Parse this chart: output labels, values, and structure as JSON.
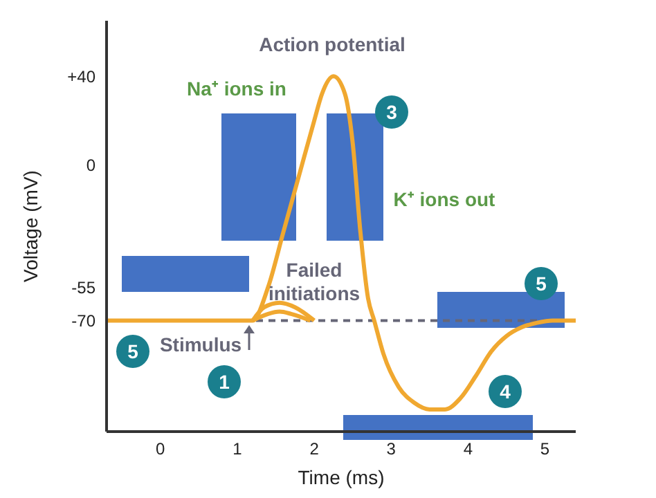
{
  "chart_data": {
    "type": "line",
    "xlabel": "Time (ms)",
    "ylabel": "Voltage (mV)",
    "xlim": [
      -0.7,
      5.4
    ],
    "ylim": [
      -120,
      65
    ],
    "xticks": [
      0,
      1,
      2,
      3,
      4,
      5
    ],
    "yticks": [
      {
        "value": 40,
        "label": "+40"
      },
      0,
      -55,
      -70
    ],
    "marker": "none",
    "line_style": "solid",
    "series": [
      {
        "color": "#f0a830",
        "x": [
          -0.7,
          1.2,
          1.4,
          1.6,
          1.8,
          2.0,
          2.1,
          2.25,
          2.4,
          2.5,
          2.6,
          2.7,
          2.78,
          2.9,
          3.1,
          3.3,
          3.5,
          3.7,
          3.9,
          4.1,
          4.3,
          4.5,
          4.7,
          4.9,
          5.1,
          5.4
        ],
        "values": [
          -70,
          -70,
          -55,
          -30,
          -5,
          20,
          32,
          40,
          32,
          10,
          -30,
          -60,
          -70,
          -85,
          -100,
          -107,
          -110,
          -110,
          -105,
          -95,
          -84,
          -77,
          -73,
          -71,
          -70,
          -70
        ]
      },
      {
        "color": "#f0a830",
        "x": [
          1.2,
          1.35,
          1.55,
          1.75,
          2.0
        ],
        "values": [
          -70,
          -64,
          -62,
          -64,
          -70
        ]
      },
      {
        "color": "#f0a830",
        "x": [
          1.2,
          1.4,
          1.55,
          1.7,
          1.95
        ],
        "values": [
          -70,
          -67,
          -66,
          -67,
          -70
        ]
      }
    ],
    "ref_lines": [
      {
        "axis": "y",
        "value": -70,
        "color": "#666677",
        "line_style": "dashed"
      }
    ],
    "annotations": [
      "Action potential",
      "Na⁺ ions in",
      "K⁺ ions out",
      "Failed initiations",
      "Stimulus",
      "1",
      "3",
      "4",
      "5",
      "5"
    ]
  }
}
